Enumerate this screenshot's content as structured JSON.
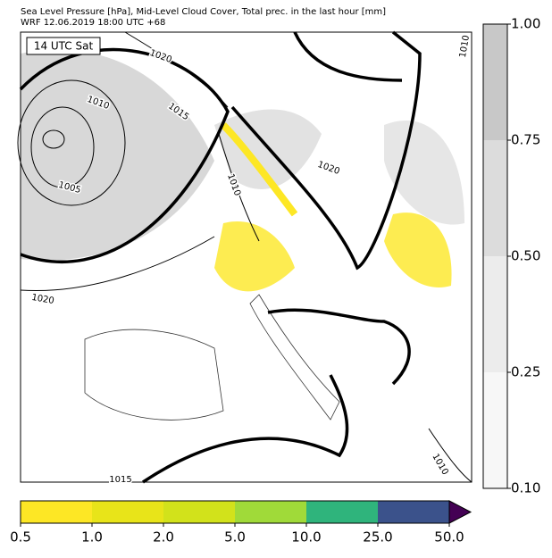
{
  "header": {
    "title_lines": [
      "Sea Level Pressure [hPa], Mid-Level Cloud Cover, Total prec. in the last hour [mm]",
      "WRF 12.06.2019 18:00 UTC +68"
    ]
  },
  "map": {
    "time_label": "14 UTC Sat",
    "isobar_labels": [
      "1020",
      "1010",
      "1015",
      "1005",
      "1010",
      "1020",
      "1020",
      "1010",
      "1010",
      "1015"
    ]
  },
  "cloud_colorbar": {
    "ticks": [
      "1.00",
      "0.75",
      "0.50",
      "0.25",
      "0.10"
    ],
    "colors": [
      "#c8c8c8",
      "#dcdcdc",
      "#ececec",
      "#f7f7f7"
    ]
  },
  "precip_colorbar": {
    "ticks": [
      "0.5",
      "1.0",
      "2.0",
      "5.0",
      "10.0",
      "25.0",
      "50.0"
    ],
    "colors": [
      "#fde725",
      "#e8e419",
      "#d2e21b",
      "#a0da39",
      "#2fb47c",
      "#3b528b",
      "#440154"
    ]
  }
}
